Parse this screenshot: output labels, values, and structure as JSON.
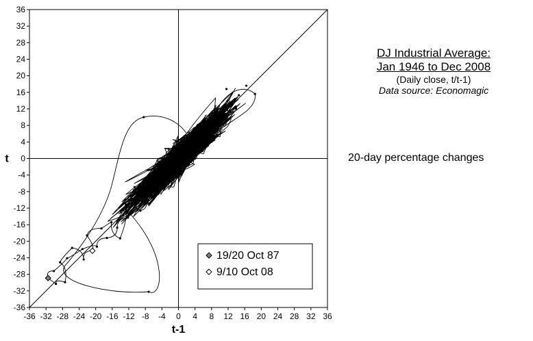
{
  "chart_data": {
    "type": "scatter",
    "title": [
      "DJ Industrial Average:",
      "Jan 1946 to Dec 2008"
    ],
    "subtitle": "(Daily close, t/t-1)",
    "source": "Data source: Economagic",
    "note": "20-day percentage changes",
    "xlabel": "t-1",
    "ylabel": "t",
    "xlim": [
      -36,
      36
    ],
    "ylim": [
      -36,
      36
    ],
    "xticks": [
      -36,
      -32,
      -28,
      -24,
      -20,
      -16,
      -12,
      -8,
      -4,
      0,
      4,
      8,
      12,
      16,
      20,
      24,
      28,
      32,
      36
    ],
    "yticks": [
      -36,
      -32,
      -28,
      -24,
      -20,
      -16,
      -12,
      -8,
      -4,
      0,
      4,
      8,
      12,
      16,
      20,
      24,
      28,
      32,
      36
    ],
    "xtick_labels": [
      "-36",
      "-32",
      "-28",
      "-24",
      "-20",
      "-16",
      "-12",
      "-8",
      "-4",
      "0",
      "4",
      "8",
      "12",
      "16",
      "20",
      "24",
      "28",
      "32",
      "36"
    ],
    "ytick_labels": [
      "-36",
      "-32",
      "-28",
      "-24",
      "-20",
      "-16",
      "-12",
      "-8",
      "-4",
      "0",
      "4",
      "8",
      "12",
      "16",
      "20",
      "24",
      "28",
      "32",
      "36"
    ],
    "reference_line": "45-degree diagonal (t = t-1)",
    "grid": false,
    "legend_position": "bottom-right",
    "series": [
      {
        "name": "19/20 Oct 87",
        "marker": "filled-grey-diamond",
        "color": "#808080",
        "points": [
          [
            -31.5,
            -28.9
          ]
        ]
      },
      {
        "name": "9/10 Oct 08",
        "marker": "open-diamond",
        "color": "#ffffff",
        "points": [
          [
            -20.8,
            -22.3
          ]
        ]
      }
    ],
    "trajectory_points": [
      [
        -10.1,
        -10.3
      ],
      [
        -12.2,
        -14.3
      ],
      [
        -14.8,
        -16.7
      ],
      [
        -17.3,
        -19.2
      ],
      [
        -19.7,
        -21.3
      ],
      [
        -23.2,
        -21.9
      ],
      [
        -26.9,
        -24.1
      ],
      [
        -30.1,
        -27.2
      ],
      [
        -31.5,
        -28.9
      ],
      [
        -29.6,
        -30.3
      ],
      [
        -27.4,
        -29.9
      ],
      [
        -28.6,
        -25.1
      ],
      [
        -25.7,
        -21.6
      ],
      [
        -22.9,
        -24.4
      ],
      [
        -20.8,
        -22.3
      ],
      [
        -22.1,
        -18.6
      ],
      [
        -18.6,
        -16.9
      ],
      [
        -16.2,
        -15.4
      ],
      [
        -14.1,
        -19.3
      ],
      [
        -12.7,
        -11.1
      ],
      [
        -9.2,
        -12.6
      ],
      [
        -7.8,
        -9.6
      ],
      [
        -10.6,
        -6.9
      ],
      [
        -8.4,
        10.0
      ],
      [
        -7.2,
        -32.2
      ],
      [
        11.6,
        16.8
      ],
      [
        14.6,
        15.3
      ],
      [
        16.4,
        17.6
      ],
      [
        18.5,
        15.6
      ],
      [
        13.9,
        12.1
      ]
    ],
    "legend": [
      {
        "label": "19/20 Oct 87",
        "marker": "filled-grey-diamond"
      },
      {
        "label": "9/10 Oct 08",
        "marker": "open-diamond"
      }
    ]
  }
}
